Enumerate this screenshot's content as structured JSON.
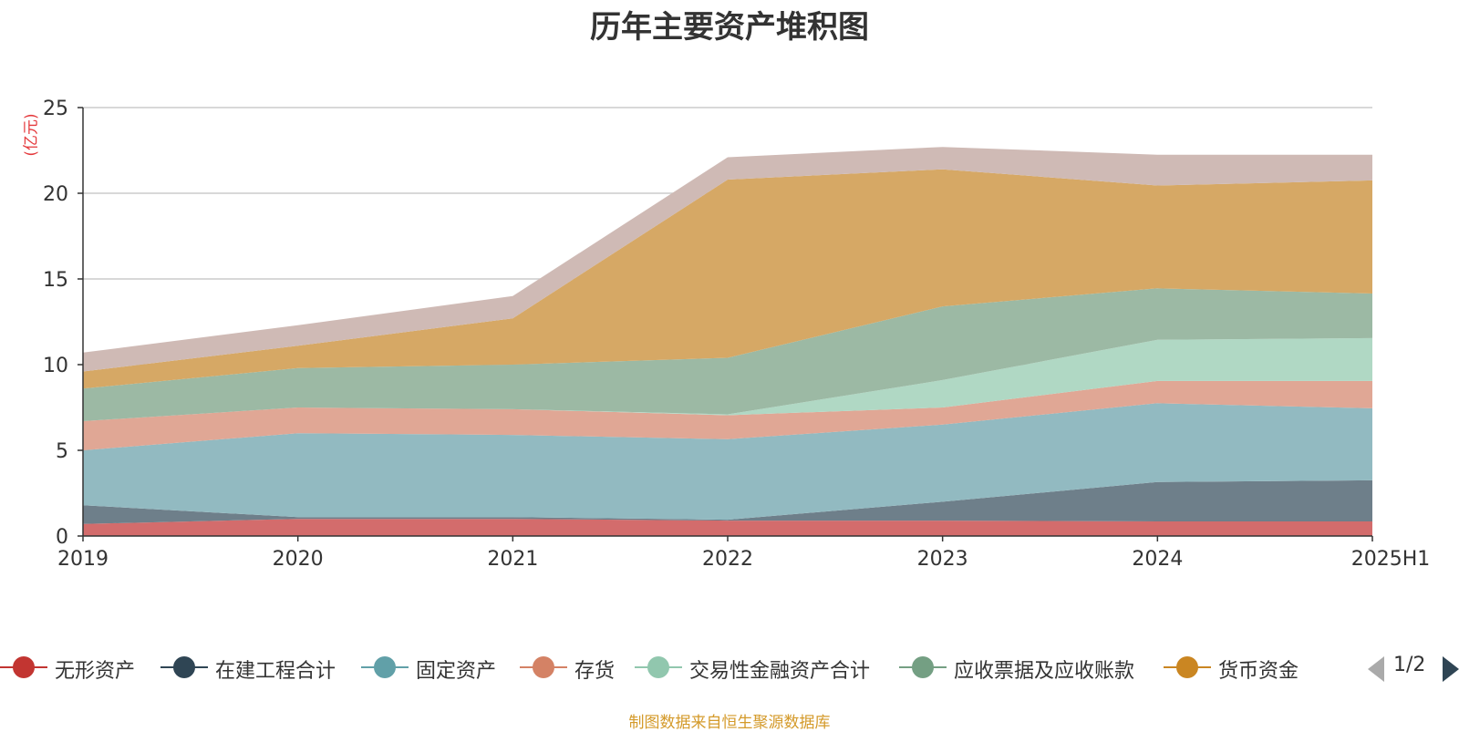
{
  "chart_data": {
    "type": "area",
    "title": "历年主要资产堆积图",
    "y_unit": "(亿元)",
    "categories": [
      "2019",
      "2020",
      "2021",
      "2022",
      "2023",
      "2024",
      "2025H1"
    ],
    "ylim": [
      0,
      25
    ],
    "yticks": [
      0,
      5,
      10,
      15,
      20,
      25
    ],
    "grid": true,
    "stacked": true,
    "series": [
      {
        "name": "无形资产",
        "color": "#d36c6c",
        "values": [
          0.7,
          1.0,
          1.0,
          0.9,
          0.9,
          0.85,
          0.85
        ]
      },
      {
        "name": "在建工程合计",
        "color": "#6e7f8a",
        "values": [
          1.1,
          0.1,
          0.1,
          0.05,
          1.1,
          2.3,
          2.4
        ]
      },
      {
        "name": "固定资产",
        "color": "#92bac1",
        "values": [
          3.2,
          4.9,
          4.8,
          4.7,
          4.5,
          4.6,
          4.2
        ]
      },
      {
        "name": "存货",
        "color": "#e0a795",
        "values": [
          1.7,
          1.5,
          1.5,
          1.4,
          1.0,
          1.3,
          1.6
        ]
      },
      {
        "name": "交易性金融资产合计",
        "color": "#b0d8c4",
        "values": [
          0.0,
          0.0,
          0.0,
          0.05,
          1.6,
          2.4,
          2.5
        ]
      },
      {
        "name": "应收票据及应收账款",
        "color": "#9cb9a4",
        "values": [
          1.9,
          2.3,
          2.6,
          3.3,
          4.3,
          3.0,
          2.6
        ]
      },
      {
        "name": "货币资金",
        "color": "#d6a865",
        "values": [
          1.0,
          1.3,
          2.7,
          10.4,
          8.0,
          6.0,
          6.6
        ]
      },
      {
        "name": "",
        "color": "#cfbab5",
        "values": [
          1.1,
          1.2,
          1.3,
          1.3,
          1.3,
          1.8,
          1.5
        ]
      }
    ]
  },
  "legend": {
    "items": [
      {
        "label": "无形资产",
        "color": "#c23531"
      },
      {
        "label": "在建工程合计",
        "color": "#2f4554"
      },
      {
        "label": "固定资产",
        "color": "#61a0a8"
      },
      {
        "label": "存货",
        "color": "#d48265"
      },
      {
        "label": "交易性金融资产合计",
        "color": "#91c7ae"
      },
      {
        "label": "应收票据及应收账款",
        "color": "#749f83"
      },
      {
        "label": "货币资金",
        "color": "#ca8622"
      }
    ],
    "page": "1/2",
    "prev_icon": "triangle-left-icon",
    "next_icon": "triangle-right-icon"
  },
  "source_note": "制图数据来自恒生聚源数据库"
}
